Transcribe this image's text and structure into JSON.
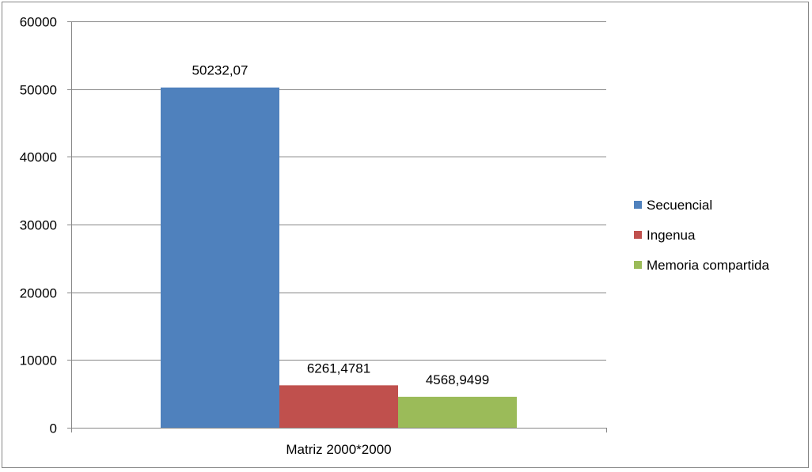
{
  "chart_data": {
    "type": "bar",
    "categories": [
      "Matriz 2000*2000"
    ],
    "series": [
      {
        "name": "Secuencial",
        "values": [
          50232.07
        ],
        "label": "50232,07",
        "color": "#4F81BD"
      },
      {
        "name": "Ingenua",
        "values": [
          6261.4781
        ],
        "label": "6261,4781",
        "color": "#C0504D"
      },
      {
        "name": "Memoria compartida",
        "values": [
          4568.9499
        ],
        "label": "4568,9499",
        "color": "#9BBB59"
      }
    ],
    "yticks": [
      0,
      10000,
      20000,
      30000,
      40000,
      50000,
      60000
    ],
    "ylim": [
      0,
      60000
    ],
    "grid": true,
    "legend_position": "right",
    "title": "",
    "xlabel": "",
    "ylabel": ""
  },
  "colors": {
    "gridline": "#868686",
    "axis": "#868686",
    "frame": "#868686"
  }
}
